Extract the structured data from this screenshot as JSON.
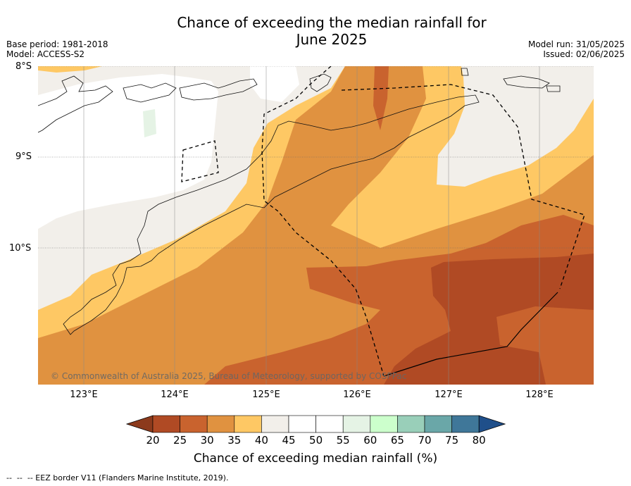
{
  "title_line1": "Chance of exceeding the median rainfall for",
  "title_line2": "June 2025",
  "base_period": "Base period: 1981-2018",
  "model": "Model: ACCESS-S2",
  "model_run": "Model run: 31/05/2025",
  "issued": "Issued: 02/06/2025",
  "lat_labels": [
    "8°S",
    "9°S",
    "10°S"
  ],
  "lon_labels": [
    "123°E",
    "124°E",
    "125°E",
    "126°E",
    "127°E",
    "128°E"
  ],
  "copyright": "© Commonwealth of Australia 2025, Bureau of Meteorology, supported by COSPPac",
  "colorbar": {
    "ticks": [
      "20",
      "25",
      "30",
      "35",
      "40",
      "45",
      "50",
      "55",
      "60",
      "65",
      "70",
      "75",
      "80"
    ],
    "colors": [
      "#8c3a1c",
      "#b04a24",
      "#c9632e",
      "#e09240",
      "#fec864",
      "#f2efea",
      "#ffffff",
      "#ffffff",
      "#e5f3e5",
      "#ccffcc",
      "#99cfb9",
      "#6aa7a8",
      "#3f7799",
      "#1f4f8a"
    ],
    "label": "Chance of exceeding median rainfall (%)"
  },
  "footer": "--  --  -- EEZ border V11 (Flanders Marine Institute, 2019)."
}
